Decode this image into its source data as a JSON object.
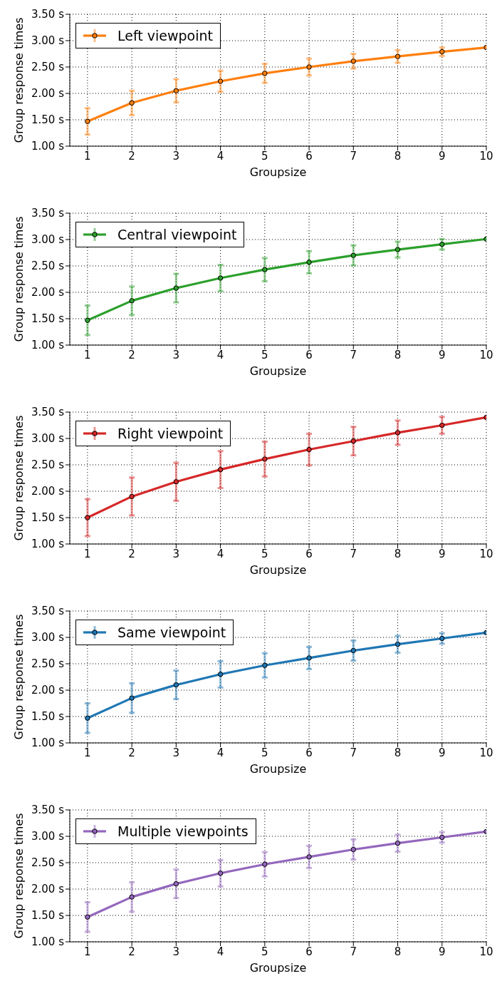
{
  "chart_data": [
    {
      "type": "line",
      "xlabel": "Groupsize",
      "ylabel": "Group response times",
      "x": [
        1,
        2,
        3,
        4,
        5,
        6,
        7,
        8,
        9,
        10
      ],
      "xlim": [
        0.6,
        10
      ],
      "xticks": [
        1,
        2,
        3,
        4,
        5,
        6,
        7,
        8,
        9,
        10
      ],
      "ylim": [
        1,
        3.5
      ],
      "yticks": [
        {
          "value": 1,
          "label": "1.00 s"
        },
        {
          "value": 1.5,
          "label": "1.50 s"
        },
        {
          "value": 2,
          "label": "2.00 s"
        },
        {
          "value": 2.5,
          "label": "2.50 s"
        },
        {
          "value": 3,
          "label": "3.00 s"
        },
        {
          "value": 3.5,
          "label": "3.50 s"
        }
      ],
      "grid": true,
      "legend": "top left",
      "marker": "circle",
      "line_style": "solid",
      "series": [
        {
          "name": "Left viewpoint",
          "color": "#ff7f0e",
          "values": [
            1.47,
            1.82,
            2.05,
            2.23,
            2.38,
            2.5,
            2.61,
            2.7,
            2.79,
            2.87
          ],
          "errors": [
            0.25,
            0.23,
            0.22,
            0.2,
            0.18,
            0.16,
            0.14,
            0.12,
            0.08,
            null
          ]
        }
      ]
    },
    {
      "type": "line",
      "xlabel": "Groupsize",
      "ylabel": "Group response times",
      "x": [
        1,
        2,
        3,
        4,
        5,
        6,
        7,
        8,
        9,
        10
      ],
      "xlim": [
        0.6,
        10
      ],
      "xticks": [
        1,
        2,
        3,
        4,
        5,
        6,
        7,
        8,
        9,
        10
      ],
      "ylim": [
        1,
        3.5
      ],
      "yticks": [
        {
          "value": 1,
          "label": "1.00 s"
        },
        {
          "value": 1.5,
          "label": "1.50 s"
        },
        {
          "value": 2,
          "label": "2.00 s"
        },
        {
          "value": 2.5,
          "label": "2.50 s"
        },
        {
          "value": 3,
          "label": "3.00 s"
        },
        {
          "value": 3.5,
          "label": "3.50 s"
        }
      ],
      "grid": true,
      "legend": "top left",
      "marker": "circle",
      "line_style": "solid",
      "series": [
        {
          "name": "Central viewpoint",
          "color": "#2ca02c",
          "values": [
            1.47,
            1.84,
            2.08,
            2.27,
            2.43,
            2.57,
            2.7,
            2.81,
            2.91,
            3.01
          ],
          "errors": [
            0.28,
            0.27,
            0.27,
            0.25,
            0.22,
            0.21,
            0.19,
            0.15,
            0.1,
            null
          ]
        }
      ]
    },
    {
      "type": "line",
      "xlabel": "Groupsize",
      "ylabel": "Group response times",
      "x": [
        1,
        2,
        3,
        4,
        5,
        6,
        7,
        8,
        9,
        10
      ],
      "xlim": [
        0.6,
        10
      ],
      "xticks": [
        1,
        2,
        3,
        4,
        5,
        6,
        7,
        8,
        9,
        10
      ],
      "ylim": [
        1,
        3.5
      ],
      "yticks": [
        {
          "value": 1,
          "label": "1.00 s"
        },
        {
          "value": 1.5,
          "label": "1.50 s"
        },
        {
          "value": 2,
          "label": "2.00 s"
        },
        {
          "value": 2.5,
          "label": "2.50 s"
        },
        {
          "value": 3,
          "label": "3.00 s"
        },
        {
          "value": 3.5,
          "label": "3.50 s"
        }
      ],
      "grid": true,
      "legend": "top left",
      "marker": "circle",
      "line_style": "solid",
      "series": [
        {
          "name": "Right viewpoint",
          "color": "#d62728",
          "values": [
            1.5,
            1.9,
            2.18,
            2.41,
            2.61,
            2.79,
            2.95,
            3.11,
            3.25,
            3.4
          ],
          "errors": [
            0.35,
            0.36,
            0.36,
            0.35,
            0.33,
            0.3,
            0.27,
            0.23,
            0.16,
            null
          ]
        }
      ]
    },
    {
      "type": "line",
      "xlabel": "Groupsize",
      "ylabel": "Group response times",
      "x": [
        1,
        2,
        3,
        4,
        5,
        6,
        7,
        8,
        9,
        10
      ],
      "xlim": [
        0.6,
        10
      ],
      "xticks": [
        1,
        2,
        3,
        4,
        5,
        6,
        7,
        8,
        9,
        10
      ],
      "ylim": [
        1,
        3.5
      ],
      "yticks": [
        {
          "value": 1,
          "label": "1.00 s"
        },
        {
          "value": 1.5,
          "label": "1.50 s"
        },
        {
          "value": 2,
          "label": "2.00 s"
        },
        {
          "value": 2.5,
          "label": "2.50 s"
        },
        {
          "value": 3,
          "label": "3.00 s"
        },
        {
          "value": 3.5,
          "label": "3.50 s"
        }
      ],
      "grid": true,
      "legend": "top left",
      "marker": "circle",
      "line_style": "solid",
      "series": [
        {
          "name": "Same viewpoint",
          "color": "#1f77b4",
          "values": [
            1.47,
            1.85,
            2.1,
            2.3,
            2.47,
            2.61,
            2.75,
            2.87,
            2.98,
            3.09
          ],
          "errors": [
            0.28,
            0.28,
            0.27,
            0.25,
            0.23,
            0.21,
            0.19,
            0.16,
            0.1,
            null
          ]
        }
      ]
    },
    {
      "type": "line",
      "xlabel": "Groupsize",
      "ylabel": "Group response times",
      "x": [
        1,
        2,
        3,
        4,
        5,
        6,
        7,
        8,
        9,
        10
      ],
      "xlim": [
        0.6,
        10
      ],
      "xticks": [
        1,
        2,
        3,
        4,
        5,
        6,
        7,
        8,
        9,
        10
      ],
      "ylim": [
        1,
        3.5
      ],
      "yticks": [
        {
          "value": 1,
          "label": "1.00 s"
        },
        {
          "value": 1.5,
          "label": "1.50 s"
        },
        {
          "value": 2,
          "label": "2.00 s"
        },
        {
          "value": 2.5,
          "label": "2.50 s"
        },
        {
          "value": 3,
          "label": "3.00 s"
        },
        {
          "value": 3.5,
          "label": "3.50 s"
        }
      ],
      "grid": true,
      "legend": "top left",
      "marker": "circle",
      "line_style": "solid",
      "series": [
        {
          "name": "Multiple viewpoints",
          "color": "#9467bd",
          "values": [
            1.47,
            1.85,
            2.1,
            2.3,
            2.47,
            2.61,
            2.75,
            2.87,
            2.98,
            3.09
          ],
          "errors": [
            0.28,
            0.28,
            0.27,
            0.25,
            0.23,
            0.21,
            0.19,
            0.16,
            0.1,
            null
          ]
        }
      ]
    }
  ]
}
